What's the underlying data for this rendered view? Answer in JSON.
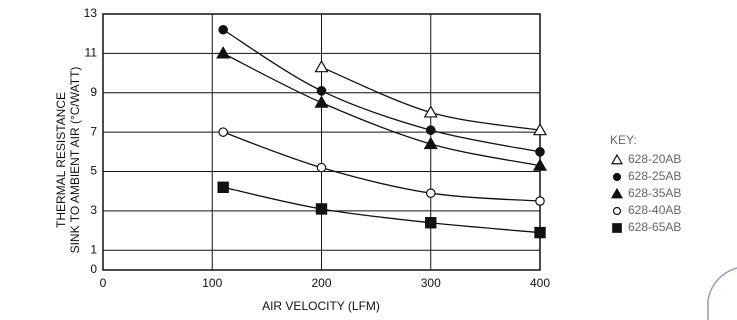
{
  "chart_data": {
    "type": "line",
    "y_label": [
      "THERMAL RESISTANCE",
      "SINK TO AMBIENT AIR (°C/WATT)"
    ],
    "x_label": "AIR VELOCITY (LFM)",
    "legend_title": "KEY:",
    "x": [
      110,
      200,
      300,
      400
    ],
    "series": [
      {
        "name": "628-20AB",
        "marker": "triangle-open",
        "color": "#111111",
        "values": [
          null,
          10.3,
          8.0,
          7.1
        ]
      },
      {
        "name": "628-25AB",
        "marker": "circle",
        "color": "#111111",
        "values": [
          12.2,
          9.1,
          7.1,
          6.0
        ]
      },
      {
        "name": "628-35AB",
        "marker": "triangle",
        "color": "#111111",
        "values": [
          11.0,
          8.5,
          6.4,
          5.3
        ]
      },
      {
        "name": "628-40AB",
        "marker": "circle-open",
        "color": "#111111",
        "values": [
          7.0,
          5.2,
          3.9,
          3.5
        ]
      },
      {
        "name": "628-65AB",
        "marker": "square",
        "color": "#111111",
        "values": [
          4.2,
          3.1,
          2.4,
          1.9
        ]
      }
    ],
    "xlim": [
      0,
      400
    ],
    "xticks": [
      0,
      100,
      200,
      300,
      400
    ],
    "ylim": [
      0,
      13
    ],
    "yticks": [
      0,
      1,
      3,
      5,
      7,
      9,
      11,
      13
    ],
    "grid": true
  }
}
